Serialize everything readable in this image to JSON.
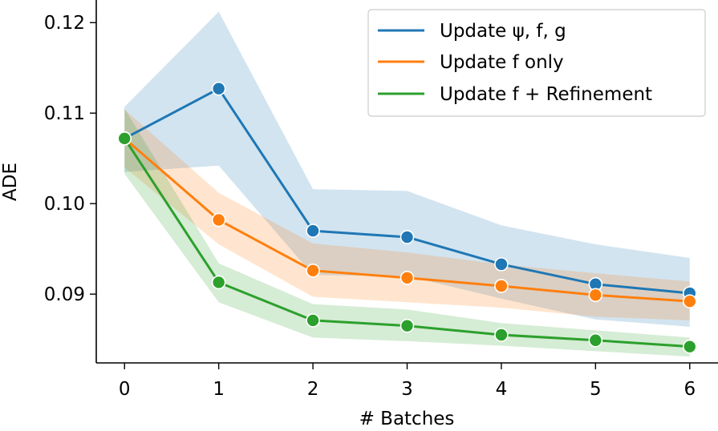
{
  "chart_data": {
    "type": "line",
    "xlabel": "# Batches",
    "ylabel": "ADE",
    "xlim": [
      -0.3,
      6.3
    ],
    "ylim": [
      0.0824,
      0.1225
    ],
    "x_ticks": [
      "0",
      "1",
      "2",
      "3",
      "4",
      "5",
      "6"
    ],
    "y_ticks": [
      "0.09",
      "0.10",
      "0.11",
      "0.12"
    ],
    "legend_position": "top-right",
    "grid": false,
    "x": [
      0,
      1,
      2,
      3,
      4,
      5,
      6
    ],
    "series": [
      {
        "name": "Update ψ, f, g",
        "color": "#1f77b4",
        "values": [
          0.1072,
          0.1127,
          0.097,
          0.0963,
          0.0933,
          0.0911,
          0.0901
        ],
        "lower": [
          0.1035,
          0.1042,
          0.0921,
          0.092,
          0.0895,
          0.0872,
          0.0864
        ],
        "upper": [
          0.1107,
          0.1212,
          0.1016,
          0.1014,
          0.0976,
          0.0955,
          0.094
        ]
      },
      {
        "name": "Update f only",
        "color": "#ff7f0e",
        "values": [
          0.1072,
          0.0982,
          0.0926,
          0.0918,
          0.0909,
          0.0899,
          0.0892
        ],
        "lower": [
          0.104,
          0.0955,
          0.0897,
          0.0891,
          0.0885,
          0.0875,
          0.0871
        ],
        "upper": [
          0.1104,
          0.1012,
          0.0956,
          0.0946,
          0.0933,
          0.0923,
          0.0914
        ]
      },
      {
        "name": "Update f + Refinement",
        "color": "#2ca02c",
        "values": [
          0.1072,
          0.0913,
          0.0871,
          0.0865,
          0.0855,
          0.0849,
          0.0842
        ],
        "lower": [
          0.1033,
          0.0891,
          0.0852,
          0.0848,
          0.0843,
          0.0837,
          0.0831
        ],
        "upper": [
          0.1105,
          0.0934,
          0.0889,
          0.0883,
          0.0868,
          0.086,
          0.0852
        ]
      }
    ]
  }
}
